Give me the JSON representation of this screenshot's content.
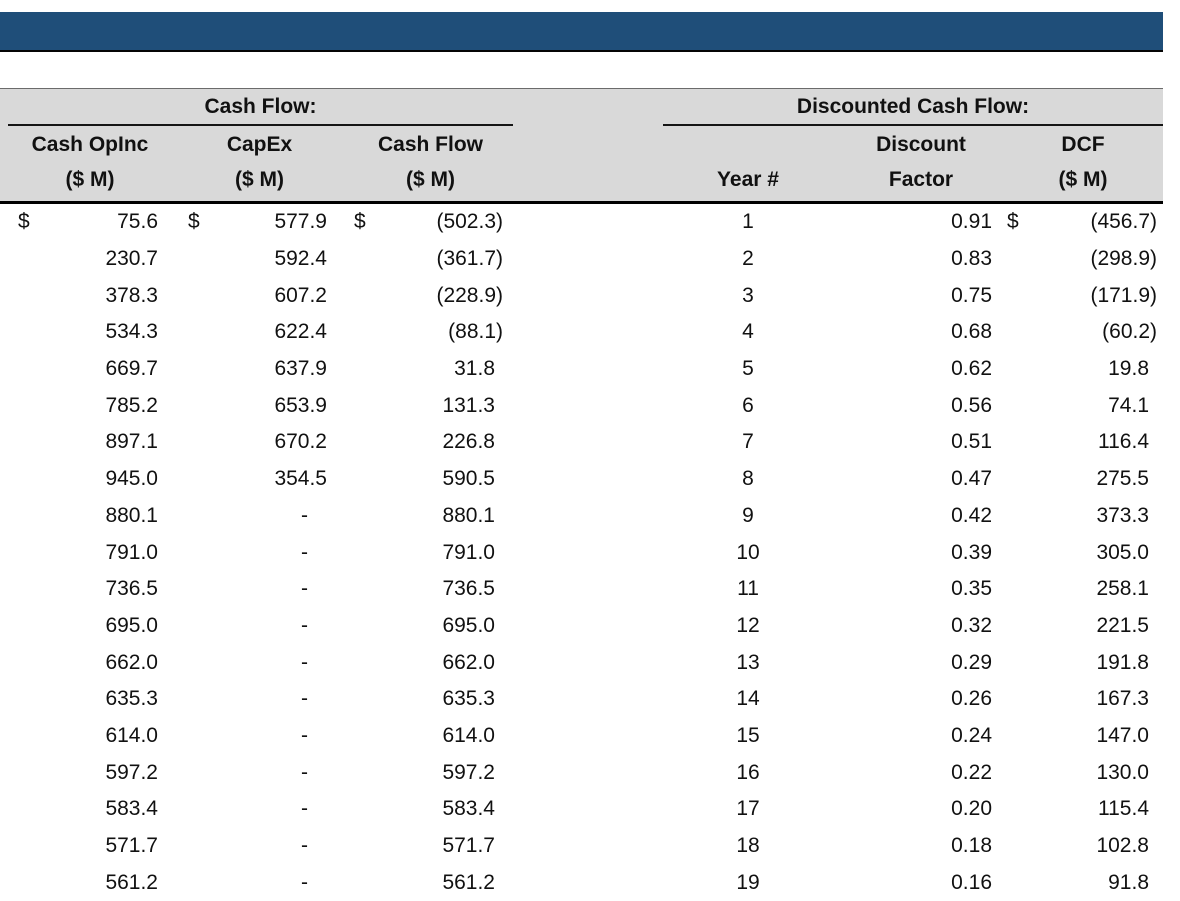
{
  "colors": {
    "title_bar": "#1F4E79",
    "header_band": "#D9D9D9",
    "rule_line": "#000000",
    "text": "#111111"
  },
  "table": {
    "currency_symbol": "$",
    "left_group": {
      "title": "Cash Flow:",
      "columns": [
        {
          "label": "Cash OpInc",
          "sublabel": "($ M)"
        },
        {
          "label": "CapEx",
          "sublabel": "($ M)"
        },
        {
          "label": "Cash Flow",
          "sublabel": "($ M)"
        }
      ]
    },
    "right_group": {
      "title": "Discounted Cash Flow:",
      "columns": [
        {
          "label": "",
          "sublabel": "Year #"
        },
        {
          "label": "Discount",
          "sublabel": "Factor"
        },
        {
          "label": "DCF",
          "sublabel": "($ M)"
        }
      ]
    },
    "rows": [
      {
        "cash_opinc": "75.6",
        "capex": "577.9",
        "cash_flow": "(502.3)",
        "year": "1",
        "discount_factor": "0.91",
        "dcf": "(456.7)",
        "show_dollar": true
      },
      {
        "cash_opinc": "230.7",
        "capex": "592.4",
        "cash_flow": "(361.7)",
        "year": "2",
        "discount_factor": "0.83",
        "dcf": "(298.9)",
        "show_dollar": false
      },
      {
        "cash_opinc": "378.3",
        "capex": "607.2",
        "cash_flow": "(228.9)",
        "year": "3",
        "discount_factor": "0.75",
        "dcf": "(171.9)",
        "show_dollar": false
      },
      {
        "cash_opinc": "534.3",
        "capex": "622.4",
        "cash_flow": "(88.1)",
        "year": "4",
        "discount_factor": "0.68",
        "dcf": "(60.2)",
        "show_dollar": false
      },
      {
        "cash_opinc": "669.7",
        "capex": "637.9",
        "cash_flow": "31.8",
        "year": "5",
        "discount_factor": "0.62",
        "dcf": "19.8",
        "show_dollar": false
      },
      {
        "cash_opinc": "785.2",
        "capex": "653.9",
        "cash_flow": "131.3",
        "year": "6",
        "discount_factor": "0.56",
        "dcf": "74.1",
        "show_dollar": false
      },
      {
        "cash_opinc": "897.1",
        "capex": "670.2",
        "cash_flow": "226.8",
        "year": "7",
        "discount_factor": "0.51",
        "dcf": "116.4",
        "show_dollar": false
      },
      {
        "cash_opinc": "945.0",
        "capex": "354.5",
        "cash_flow": "590.5",
        "year": "8",
        "discount_factor": "0.47",
        "dcf": "275.5",
        "show_dollar": false
      },
      {
        "cash_opinc": "880.1",
        "capex": "-",
        "cash_flow": "880.1",
        "year": "9",
        "discount_factor": "0.42",
        "dcf": "373.3",
        "show_dollar": false
      },
      {
        "cash_opinc": "791.0",
        "capex": "-",
        "cash_flow": "791.0",
        "year": "10",
        "discount_factor": "0.39",
        "dcf": "305.0",
        "show_dollar": false
      },
      {
        "cash_opinc": "736.5",
        "capex": "-",
        "cash_flow": "736.5",
        "year": "11",
        "discount_factor": "0.35",
        "dcf": "258.1",
        "show_dollar": false
      },
      {
        "cash_opinc": "695.0",
        "capex": "-",
        "cash_flow": "695.0",
        "year": "12",
        "discount_factor": "0.32",
        "dcf": "221.5",
        "show_dollar": false
      },
      {
        "cash_opinc": "662.0",
        "capex": "-",
        "cash_flow": "662.0",
        "year": "13",
        "discount_factor": "0.29",
        "dcf": "191.8",
        "show_dollar": false
      },
      {
        "cash_opinc": "635.3",
        "capex": "-",
        "cash_flow": "635.3",
        "year": "14",
        "discount_factor": "0.26",
        "dcf": "167.3",
        "show_dollar": false
      },
      {
        "cash_opinc": "614.0",
        "capex": "-",
        "cash_flow": "614.0",
        "year": "15",
        "discount_factor": "0.24",
        "dcf": "147.0",
        "show_dollar": false
      },
      {
        "cash_opinc": "597.2",
        "capex": "-",
        "cash_flow": "597.2",
        "year": "16",
        "discount_factor": "0.22",
        "dcf": "130.0",
        "show_dollar": false
      },
      {
        "cash_opinc": "583.4",
        "capex": "-",
        "cash_flow": "583.4",
        "year": "17",
        "discount_factor": "0.20",
        "dcf": "115.4",
        "show_dollar": false
      },
      {
        "cash_opinc": "571.7",
        "capex": "-",
        "cash_flow": "571.7",
        "year": "18",
        "discount_factor": "0.18",
        "dcf": "102.8",
        "show_dollar": false
      },
      {
        "cash_opinc": "561.2",
        "capex": "-",
        "cash_flow": "561.2",
        "year": "19",
        "discount_factor": "0.16",
        "dcf": "91.8",
        "show_dollar": false
      }
    ]
  }
}
